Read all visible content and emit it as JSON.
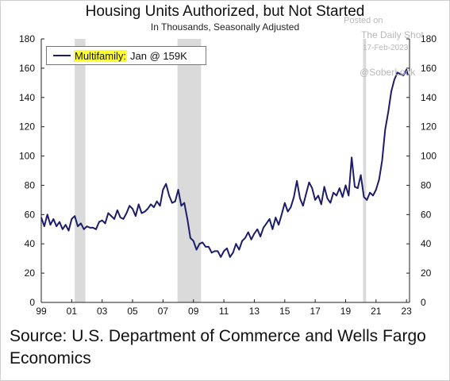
{
  "title": "Housing Units Authorized, but Not Started",
  "subtitle": "In Thousands, Seasonally Adjusted",
  "watermark": {
    "posted_on": "Posted on",
    "source_name": "The Daily Shot",
    "date": "17-Feb-2023",
    "handle": "@SoberLook"
  },
  "legend": {
    "series_name": "Multifamily:",
    "latest_value": "Jan @ 159K"
  },
  "source_text": "Source: U.S. Department of Commerce and Wells Fargo Economics",
  "colors": {
    "line": "#1c1c6b",
    "recession": "#dadada",
    "legend_highlight": "#ffff2e"
  },
  "chart_data": {
    "type": "line",
    "title": "Housing Units Authorized, but Not Started",
    "subtitle": "In Thousands, Seasonally Adjusted",
    "x_tick_labels": [
      "99",
      "01",
      "03",
      "05",
      "07",
      "09",
      "11",
      "13",
      "15",
      "17",
      "19",
      "21",
      "23"
    ],
    "x_tick_years": [
      1999,
      2001,
      2003,
      2005,
      2007,
      2009,
      2011,
      2013,
      2015,
      2017,
      2019,
      2021,
      2023
    ],
    "xlim": [
      1999.0,
      2023.2
    ],
    "ylim": [
      0,
      180
    ],
    "y_ticks": [
      0,
      20,
      40,
      60,
      80,
      100,
      120,
      140,
      160,
      180
    ],
    "y_axis_both_sides": true,
    "grid": false,
    "legend_position": "top-left",
    "recession_shading": [
      [
        2001.2,
        2001.9
      ],
      [
        2007.95,
        2009.5
      ],
      [
        2020.15,
        2020.35
      ]
    ],
    "series": [
      {
        "name": "Multifamily",
        "x": [
          1999.0,
          1999.2,
          1999.4,
          1999.6,
          1999.8,
          2000.0,
          2000.2,
          2000.4,
          2000.6,
          2000.8,
          2001.0,
          2001.2,
          2001.4,
          2001.6,
          2001.8,
          2002.0,
          2002.2,
          2002.4,
          2002.6,
          2002.8,
          2003.0,
          2003.2,
          2003.4,
          2003.6,
          2003.8,
          2004.0,
          2004.2,
          2004.4,
          2004.6,
          2004.8,
          2005.0,
          2005.2,
          2005.4,
          2005.6,
          2005.8,
          2006.0,
          2006.2,
          2006.4,
          2006.6,
          2006.8,
          2007.0,
          2007.2,
          2007.4,
          2007.6,
          2007.8,
          2008.0,
          2008.2,
          2008.4,
          2008.6,
          2008.8,
          2009.0,
          2009.2,
          2009.4,
          2009.6,
          2009.8,
          2010.0,
          2010.2,
          2010.4,
          2010.6,
          2010.8,
          2011.0,
          2011.2,
          2011.4,
          2011.6,
          2011.8,
          2012.0,
          2012.2,
          2012.4,
          2012.6,
          2012.8,
          2013.0,
          2013.2,
          2013.4,
          2013.6,
          2013.8,
          2014.0,
          2014.2,
          2014.4,
          2014.6,
          2014.8,
          2015.0,
          2015.2,
          2015.4,
          2015.6,
          2015.8,
          2016.0,
          2016.2,
          2016.4,
          2016.6,
          2016.8,
          2017.0,
          2017.2,
          2017.4,
          2017.6,
          2017.8,
          2018.0,
          2018.2,
          2018.4,
          2018.6,
          2018.8,
          2019.0,
          2019.2,
          2019.4,
          2019.6,
          2019.8,
          2020.0,
          2020.2,
          2020.4,
          2020.6,
          2020.8,
          2021.0,
          2021.2,
          2021.4,
          2021.6,
          2021.8,
          2022.0,
          2022.2,
          2022.4,
          2022.6,
          2022.8,
          2023.0,
          2023.1
        ],
        "y": [
          58,
          52,
          60,
          53,
          57,
          52,
          55,
          50,
          53,
          49,
          57,
          59,
          52,
          54,
          50,
          52,
          51,
          51,
          50,
          55,
          56,
          54,
          61,
          59,
          57,
          63,
          58,
          57,
          61,
          66,
          64,
          59,
          67,
          61,
          62,
          64,
          67,
          65,
          69,
          66,
          77,
          81,
          73,
          68,
          69,
          77,
          66,
          68,
          57,
          44,
          42,
          36,
          40,
          41,
          38,
          38,
          34,
          35,
          35,
          31,
          35,
          37,
          31,
          34,
          40,
          36,
          42,
          44,
          48,
          43,
          47,
          50,
          45,
          51,
          54,
          57,
          50,
          58,
          53,
          60,
          68,
          62,
          65,
          72,
          83,
          71,
          66,
          74,
          82,
          78,
          70,
          73,
          67,
          79,
          71,
          68,
          75,
          73,
          78,
          72,
          80,
          73,
          99,
          79,
          78,
          87,
          72,
          70,
          75,
          73,
          77,
          84,
          97,
          118,
          130,
          144,
          152,
          157,
          156,
          155,
          159,
          155
        ]
      }
    ],
    "annotation": "Jan @ 159K"
  }
}
